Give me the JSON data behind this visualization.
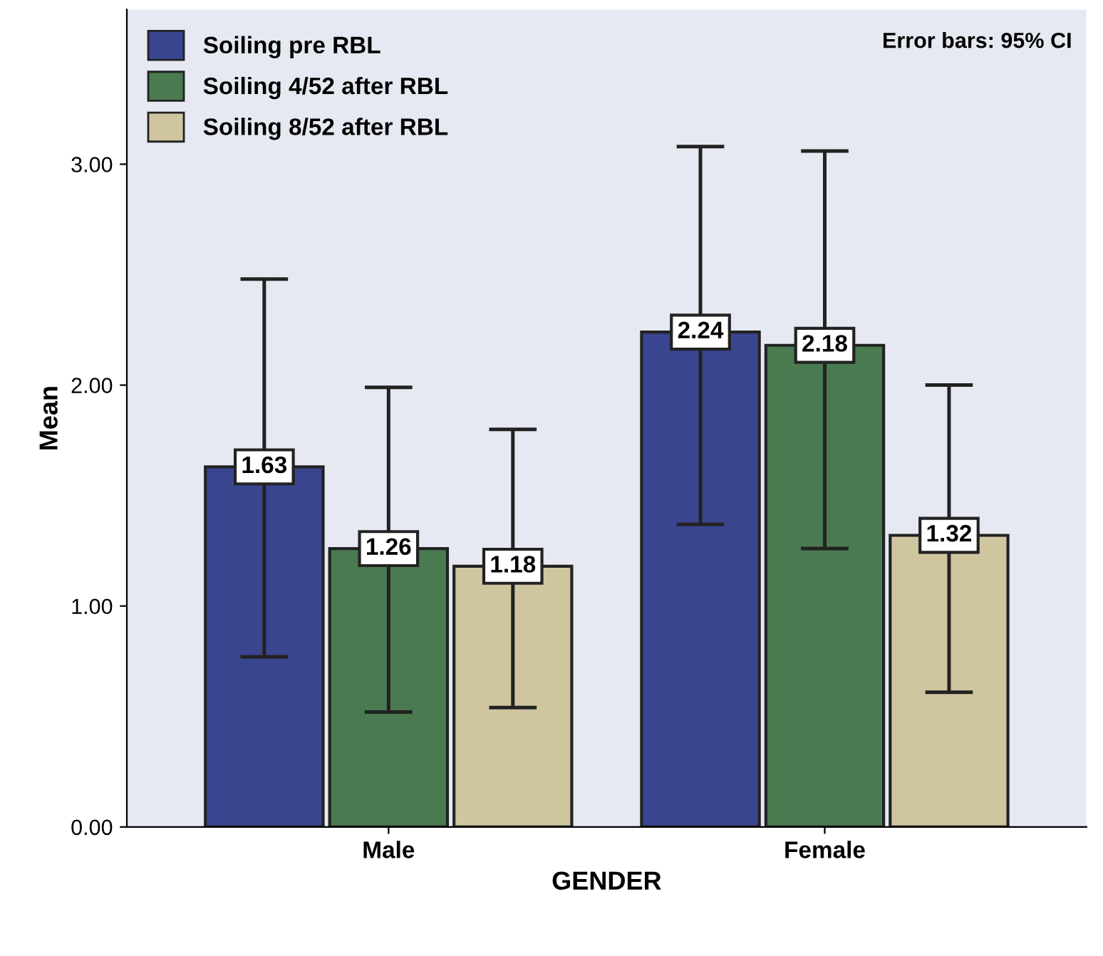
{
  "chart_data": {
    "type": "bar",
    "xlabel": "GENDER",
    "ylabel": "Mean",
    "categories": [
      "Male",
      "Female"
    ],
    "series": [
      {
        "name": "Soiling pre RBL",
        "color": "#3a4590",
        "values": [
          1.63,
          2.24
        ],
        "errors": [
          [
            0.77,
            2.48
          ],
          [
            1.37,
            3.08
          ]
        ]
      },
      {
        "name": "Soiling 4/52 after RBL",
        "color": "#4a7a50",
        "values": [
          1.26,
          2.18
        ],
        "errors": [
          [
            0.52,
            1.99
          ],
          [
            1.26,
            3.06
          ]
        ]
      },
      {
        "name": "Soiling 8/52 after RBL",
        "color": "#cfc6a0",
        "values": [
          1.18,
          1.32
        ],
        "errors": [
          [
            0.54,
            1.8
          ],
          [
            0.61,
            2.0
          ]
        ]
      }
    ],
    "ylim": [
      0,
      3.7
    ],
    "yticks": [
      {
        "value": 0,
        "label": "0.00"
      },
      {
        "value": 1,
        "label": "1.00"
      },
      {
        "value": 2,
        "label": "2.00"
      },
      {
        "value": 3,
        "label": "3.00"
      }
    ],
    "data_labels": true,
    "grid": false,
    "legend": "top left",
    "annotations": [
      "Error bars: 95% CI"
    ]
  }
}
